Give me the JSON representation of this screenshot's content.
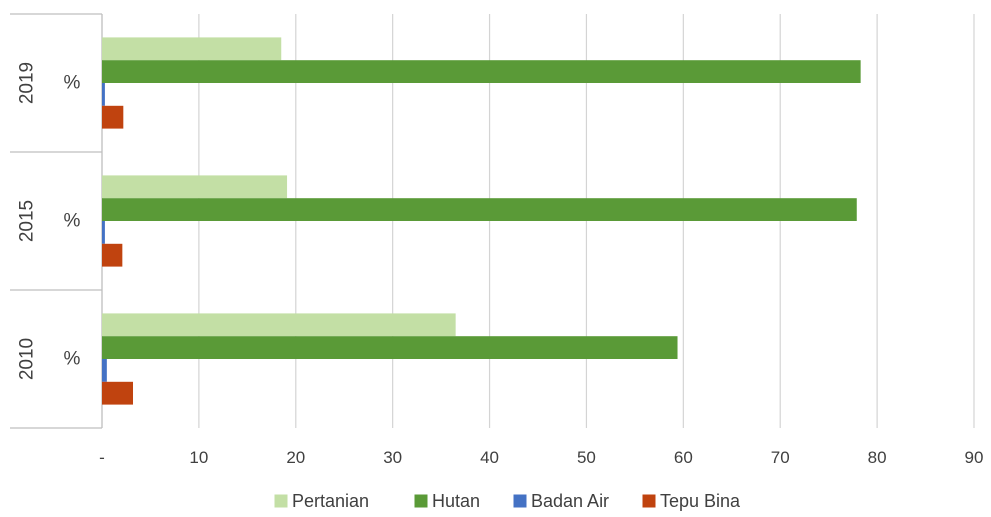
{
  "chart_data": {
    "type": "bar",
    "orientation": "horizontal",
    "groups": [
      "2019",
      "2015",
      "2010"
    ],
    "subcategory": "%",
    "series": [
      {
        "name": "Pertanian",
        "color": "#c3dfa5",
        "values": [
          18.5,
          19.1,
          36.5
        ]
      },
      {
        "name": "Hutan",
        "color": "#5a9a37",
        "values": [
          78.3,
          77.9,
          59.4
        ]
      },
      {
        "name": "Badan Air",
        "color": "#4472c4",
        "values": [
          0.3,
          0.3,
          0.5
        ]
      },
      {
        "name": "Tepu Bina",
        "color": "#c0430f",
        "values": [
          2.2,
          2.1,
          3.2
        ]
      }
    ],
    "x_ticks": [
      "-",
      "10",
      "20",
      "30",
      "40",
      "50",
      "60",
      "70",
      "80",
      "90"
    ],
    "xlim": [
      0,
      90
    ],
    "grid": true,
    "legend": "bottom"
  }
}
